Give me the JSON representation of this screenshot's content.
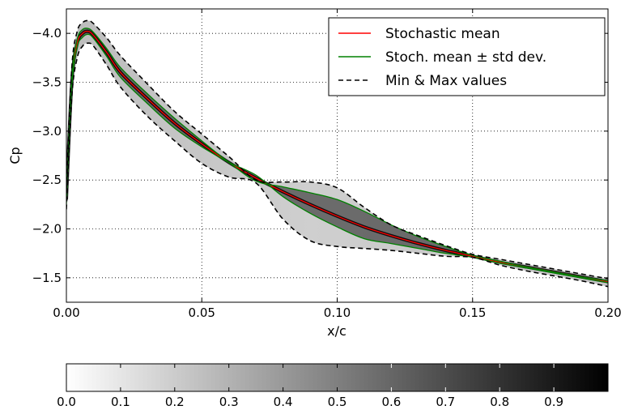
{
  "chart_data": {
    "type": "line",
    "xlabel": "x/c",
    "ylabel": "Cp",
    "xlim": [
      0.0,
      0.2
    ],
    "ylim": [
      -1.25,
      -4.25
    ],
    "y_inverted": true,
    "grid": true,
    "legend_placement": "top-right",
    "x_ticks": [
      0.0,
      0.05,
      0.1,
      0.15,
      0.2
    ],
    "x_tick_labels": [
      "0.00",
      "0.05",
      "0.10",
      "0.15",
      "0.20"
    ],
    "y_ticks": [
      -4.0,
      -3.5,
      -3.0,
      -2.5,
      -2.0,
      -1.5
    ],
    "y_tick_labels": [
      "−4.0",
      "−3.5",
      "−3.0",
      "−2.5",
      "−2.0",
      "−1.5"
    ],
    "x": [
      0.0,
      0.002,
      0.004,
      0.006,
      0.008,
      0.01,
      0.015,
      0.02,
      0.03,
      0.04,
      0.05,
      0.06,
      0.07,
      0.08,
      0.09,
      0.1,
      0.11,
      0.12,
      0.13,
      0.14,
      0.15,
      0.16,
      0.17,
      0.18,
      0.19,
      0.2
    ],
    "series": [
      {
        "name": "Stochastic mean",
        "color": "#ff0000",
        "style": "solid",
        "values": [
          -2.3,
          -3.5,
          -3.9,
          -4.0,
          -4.02,
          -3.98,
          -3.8,
          -3.6,
          -3.33,
          -3.08,
          -2.87,
          -2.68,
          -2.52,
          -2.38,
          -2.25,
          -2.13,
          -2.02,
          -1.93,
          -1.85,
          -1.78,
          -1.72,
          -1.66,
          -1.61,
          -1.56,
          -1.51,
          -1.46
        ]
      },
      {
        "name": "Stoch. mean ± std dev.",
        "color": "#008000",
        "style": "solid",
        "values": [
          -2.35,
          -3.55,
          -3.94,
          -4.04,
          -4.05,
          -4.01,
          -3.84,
          -3.65,
          -3.38,
          -3.13,
          -2.9,
          -2.68,
          -2.49,
          -2.43,
          -2.37,
          -2.3,
          -2.18,
          -2.04,
          -1.92,
          -1.82,
          -1.73,
          -1.67,
          -1.61,
          -1.56,
          -1.51,
          -1.47
        ]
      },
      {
        "name": "Stoch. mean ± std dev. (lower)",
        "color": "#008000",
        "style": "solid",
        "values": [
          -2.25,
          -3.45,
          -3.86,
          -3.96,
          -3.99,
          -3.95,
          -3.76,
          -3.55,
          -3.28,
          -3.03,
          -2.84,
          -2.68,
          -2.55,
          -2.33,
          -2.16,
          -2.02,
          -1.9,
          -1.85,
          -1.8,
          -1.75,
          -1.71,
          -1.65,
          -1.6,
          -1.55,
          -1.5,
          -1.45
        ]
      },
      {
        "name": "Min & Max values",
        "color": "#000000",
        "style": "dashed",
        "values": [
          -2.4,
          -3.65,
          -4.02,
          -4.11,
          -4.13,
          -4.1,
          -3.95,
          -3.77,
          -3.48,
          -3.2,
          -2.97,
          -2.74,
          -2.5,
          -2.48,
          -2.48,
          -2.42,
          -2.22,
          -2.04,
          -1.93,
          -1.83,
          -1.74,
          -1.69,
          -1.64,
          -1.59,
          -1.54,
          -1.49
        ]
      },
      {
        "name": "Min & Max values (lower)",
        "color": "#000000",
        "style": "dashed",
        "values": [
          -2.2,
          -3.35,
          -3.75,
          -3.87,
          -3.9,
          -3.87,
          -3.67,
          -3.45,
          -3.15,
          -2.9,
          -2.67,
          -2.53,
          -2.47,
          -2.1,
          -1.88,
          -1.82,
          -1.8,
          -1.78,
          -1.75,
          -1.72,
          -1.71,
          -1.63,
          -1.57,
          -1.52,
          -1.47,
          -1.41
        ]
      }
    ],
    "legend": [
      "Stochastic mean",
      "Stoch. mean ± std dev.",
      "Min & Max values"
    ],
    "colorbar": {
      "orientation": "horizontal",
      "range": [
        0.0,
        1.0
      ],
      "ticks": [
        0.0,
        0.1,
        0.2,
        0.3,
        0.4,
        0.5,
        0.6,
        0.7,
        0.8,
        0.9
      ],
      "tick_labels": [
        "0.0",
        "0.1",
        "0.2",
        "0.3",
        "0.4",
        "0.5",
        "0.6",
        "0.7",
        "0.8",
        "0.9"
      ],
      "colormap": "gray_r"
    }
  }
}
